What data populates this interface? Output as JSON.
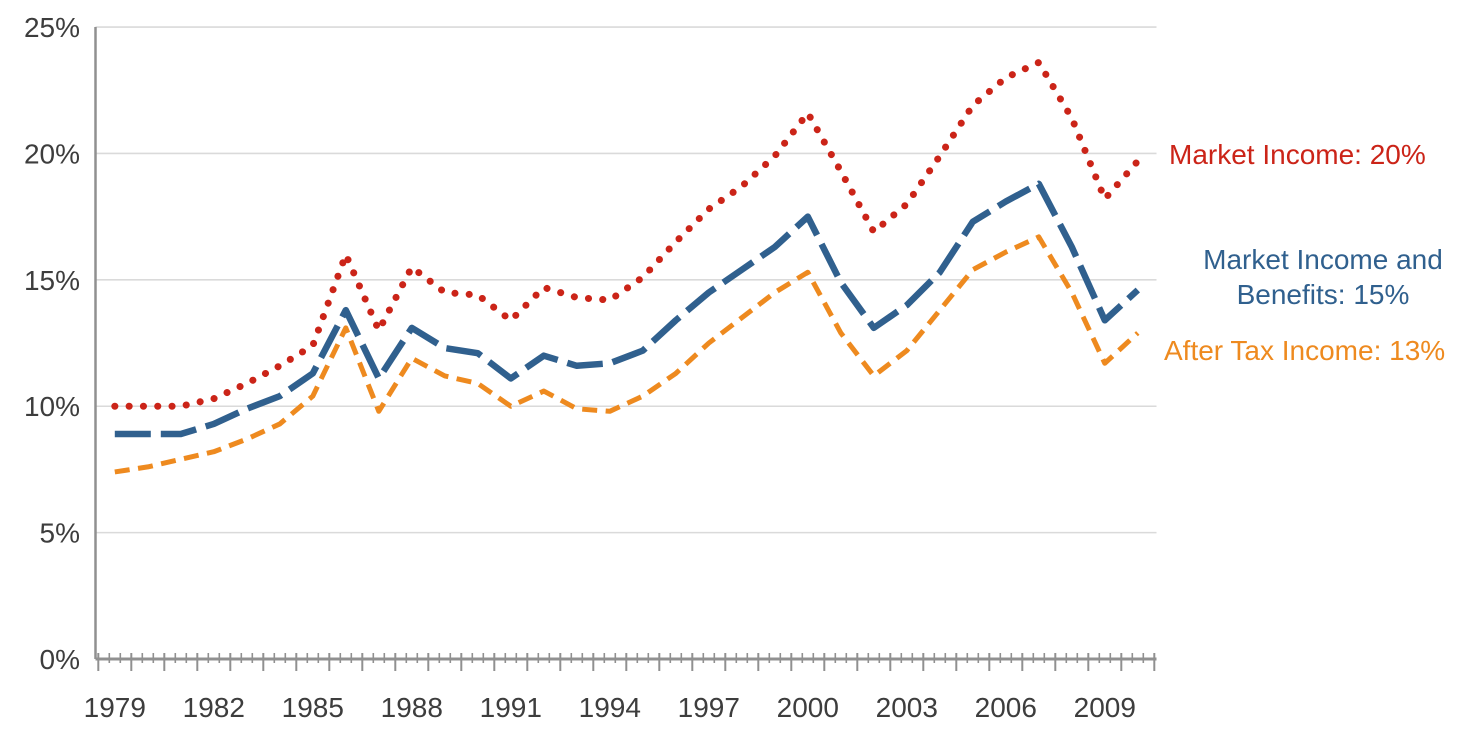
{
  "chart_data": {
    "type": "line",
    "title": "",
    "xlabel": "",
    "ylabel": "",
    "ylim": [
      0,
      25
    ],
    "xlim_years": [
      1979,
      2010
    ],
    "grid": "horizontal",
    "legend_position": "right-of-plot",
    "y_ticks": [
      0,
      5,
      10,
      15,
      20,
      25
    ],
    "y_tick_labels": [
      "0%",
      "5%",
      "10%",
      "15%",
      "20%",
      "25%"
    ],
    "x_tick_years": [
      1979,
      1982,
      1985,
      1988,
      1991,
      1994,
      1997,
      2000,
      2003,
      2006,
      2009
    ],
    "x_tick_labels": [
      "1979",
      "1982",
      "1985",
      "1988",
      "1991",
      "1994",
      "1997",
      "2000",
      "2003",
      "2006",
      "2009"
    ],
    "x": [
      1979,
      1980,
      1981,
      1982,
      1983,
      1984,
      1985,
      1986,
      1987,
      1988,
      1989,
      1990,
      1991,
      1992,
      1993,
      1994,
      1995,
      1996,
      1997,
      1998,
      1999,
      2000,
      2001,
      2002,
      2003,
      2004,
      2005,
      2006,
      2007,
      2008,
      2009,
      2010
    ],
    "series": [
      {
        "id": "market-income",
        "name": "Market Income",
        "legend": "Market Income: 20%",
        "color": "#cb2418",
        "style": "dotted",
        "end_value_label": "20%",
        "values": [
          10.0,
          10.0,
          10.0,
          10.3,
          10.9,
          11.6,
          12.4,
          16.0,
          13.0,
          15.5,
          14.5,
          14.4,
          13.4,
          14.7,
          14.3,
          14.2,
          15.1,
          16.5,
          17.8,
          18.7,
          19.9,
          21.6,
          19.3,
          16.9,
          18.0,
          19.9,
          21.9,
          23.0,
          23.6,
          21.4,
          18.2,
          19.7
        ]
      },
      {
        "id": "market-income-and-benefits",
        "name": "Market Income and Benefits",
        "legend_lines": [
          "Market Income and",
          "Benefits: 15%"
        ],
        "color": "#30608e",
        "style": "long-dash",
        "end_value_label": "15%",
        "values": [
          8.9,
          8.9,
          8.9,
          9.3,
          9.9,
          10.4,
          11.3,
          13.8,
          11.1,
          13.1,
          12.3,
          12.1,
          11.1,
          12.0,
          11.6,
          11.7,
          12.2,
          13.4,
          14.5,
          15.4,
          16.3,
          17.5,
          14.9,
          13.1,
          14.0,
          15.3,
          17.3,
          18.1,
          18.8,
          16.3,
          13.4,
          14.6
        ]
      },
      {
        "id": "after-tax-income",
        "name": "After Tax Income",
        "legend": "After Tax Income: 13%",
        "color": "#ee8a1f",
        "style": "dash",
        "end_value_label": "13%",
        "values": [
          7.4,
          7.6,
          7.9,
          8.2,
          8.7,
          9.3,
          10.4,
          13.1,
          9.8,
          11.9,
          11.2,
          10.9,
          10.0,
          10.6,
          9.9,
          9.8,
          10.4,
          11.3,
          12.5,
          13.5,
          14.5,
          15.3,
          12.9,
          11.2,
          12.2,
          13.8,
          15.4,
          16.1,
          16.7,
          14.5,
          11.7,
          12.9
        ]
      }
    ],
    "colors": {
      "gridline": "#dadada",
      "axis": "#909090",
      "tick_label": "#3d3d3d"
    }
  }
}
